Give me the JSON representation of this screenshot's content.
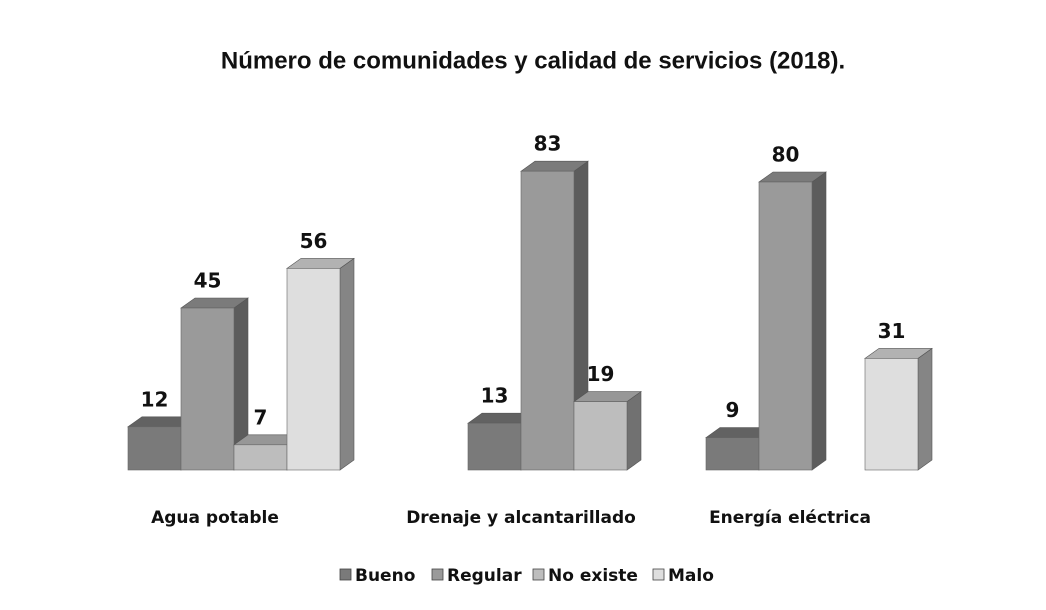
{
  "chart_data": {
    "type": "bar3d",
    "title": "Número de comunidades y calidad de servicios (2018).",
    "categories": [
      "Agua potable",
      "Drenaje y alcantarillado",
      "Energía eléctrica"
    ],
    "series": [
      {
        "name": "Bueno",
        "color": "#7a7a7a",
        "values": [
          12,
          13,
          9
        ]
      },
      {
        "name": "Regular",
        "color": "#9a9a9a",
        "values": [
          45,
          83,
          80
        ]
      },
      {
        "name": "No existe",
        "color": "#bdbdbd",
        "values": [
          7,
          19,
          null
        ]
      },
      {
        "name": "Malo",
        "color": "#dedede",
        "values": [
          56,
          null,
          31
        ]
      }
    ],
    "legend": "bottom"
  }
}
